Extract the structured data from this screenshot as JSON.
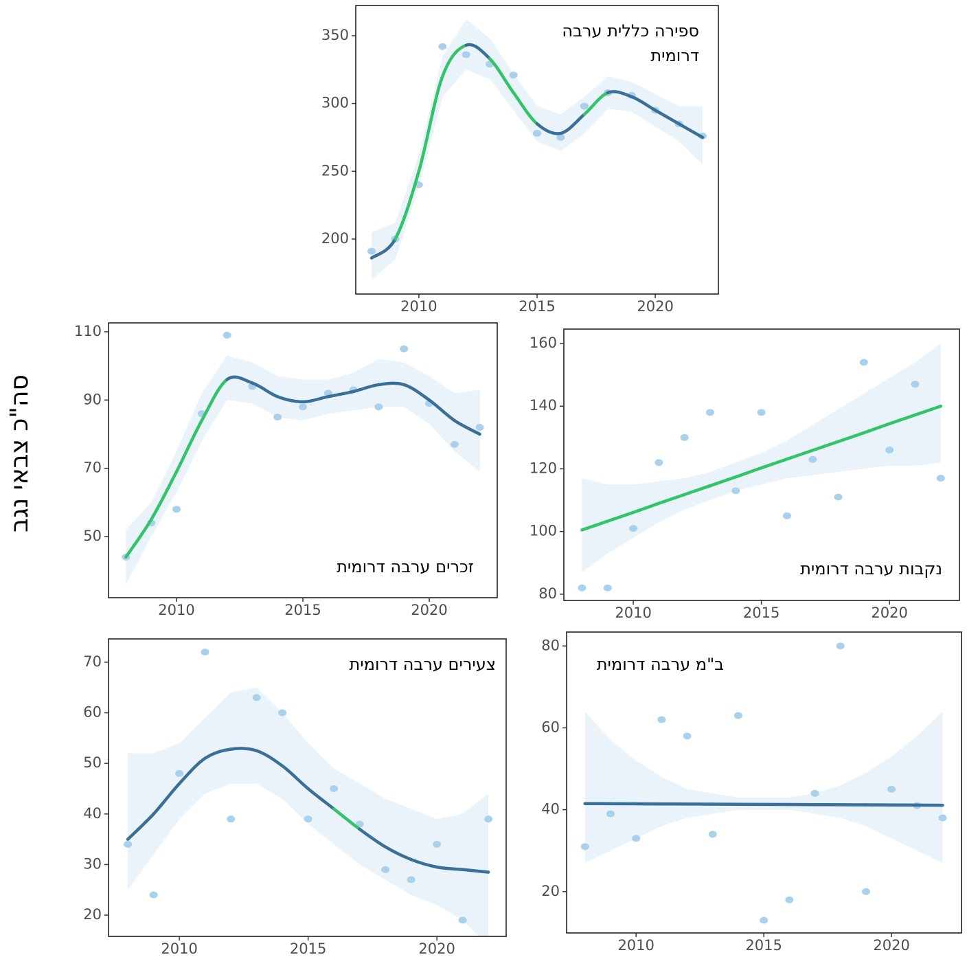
{
  "ylabel": "סה\"כ צבאי נגב",
  "chart_data": [
    {
      "type": "scatter",
      "title_lines": [
        "ספירה כללית ערבה",
        "דרומית"
      ],
      "x": [
        2008,
        2009,
        2010,
        2011,
        2012,
        2013,
        2014,
        2015,
        2016,
        2017,
        2018,
        2019,
        2020,
        2021,
        2022
      ],
      "points": [
        191,
        200,
        240,
        342,
        336,
        329,
        321,
        278,
        275,
        298,
        308,
        306,
        295,
        285,
        276
      ],
      "fit": [
        186,
        200,
        250,
        320,
        343,
        333,
        308,
        285,
        278,
        292,
        308,
        305,
        295,
        285,
        275
      ],
      "band_lower": [
        170,
        185,
        238,
        305,
        325,
        318,
        295,
        272,
        265,
        278,
        296,
        294,
        283,
        272,
        255
      ],
      "band_upper": [
        205,
        212,
        262,
        335,
        362,
        348,
        322,
        298,
        292,
        305,
        320,
        316,
        307,
        298,
        298
      ],
      "segment_colors": [
        "#3a6f98",
        "#33c46a",
        "#33c46a",
        "#33c46a",
        "#3a6f98",
        "#33c46a",
        "#33c46a",
        "#3a6f98",
        "#3a6f98",
        "#33c46a",
        "#3a6f98",
        "#3a6f98",
        "#3a6f98",
        "#3a6f98"
      ],
      "point_color": "#a9d1ec",
      "band_color": "#eaf2fa",
      "xlim": [
        2007.33,
        2022.67
      ],
      "xticks": [
        2010,
        2015,
        2020
      ],
      "ylim": [
        159.4,
        372.3
      ],
      "yticks": [
        200,
        250,
        300,
        350
      ]
    },
    {
      "type": "scatter",
      "title_lines": [
        "זכרים ערבה דרומית"
      ],
      "x": [
        2008,
        2009,
        2010,
        2011,
        2012,
        2013,
        2014,
        2015,
        2016,
        2017,
        2018,
        2019,
        2020,
        2021,
        2022
      ],
      "points": [
        44,
        54,
        58,
        86,
        109,
        94,
        85,
        88,
        92,
        93,
        88,
        105,
        89,
        77,
        82
      ],
      "fit": [
        44,
        55,
        69,
        84,
        96,
        95,
        91,
        89.5,
        91,
        92.5,
        94.5,
        94.5,
        90,
        84,
        80
      ],
      "band_lower": [
        36,
        50,
        63,
        78,
        90,
        89,
        85,
        84,
        86,
        87,
        88,
        88,
        83,
        75,
        69
      ],
      "band_upper": [
        52,
        60,
        75,
        92,
        103,
        101,
        97,
        96,
        96,
        98,
        102,
        101,
        97,
        92,
        93
      ],
      "segment_colors": [
        "#33c46a",
        "#33c46a",
        "#33c46a",
        "#33c46a",
        "#3a6f98",
        "#3a6f98",
        "#3a6f98",
        "#3a6f98",
        "#3a6f98",
        "#3a6f98",
        "#3a6f98",
        "#3a6f98",
        "#3a6f98",
        "#3a6f98"
      ],
      "point_color": "#a9d1ec",
      "band_color": "#eaf2fa",
      "xlim": [
        2007.31,
        2022.69
      ],
      "xticks": [
        2010,
        2015,
        2020
      ],
      "ylim": [
        32.1,
        112.6
      ],
      "yticks": [
        50,
        70,
        90,
        110
      ]
    },
    {
      "type": "scatter",
      "title_lines": [
        "נקבות ערבה דרומית"
      ],
      "x": [
        2008,
        2009,
        2010,
        2011,
        2012,
        2013,
        2014,
        2015,
        2016,
        2017,
        2018,
        2019,
        2020,
        2021,
        2022
      ],
      "points": [
        82,
        82,
        101,
        122,
        130,
        138,
        113,
        138,
        105,
        123,
        111,
        154,
        126,
        147,
        117
      ],
      "fit": [
        100.5,
        103.3,
        106.1,
        109.0,
        111.8,
        114.6,
        117.4,
        120.3,
        123.1,
        125.9,
        128.7,
        131.5,
        134.4,
        137.2,
        140
      ],
      "band_lower": [
        87,
        93,
        98,
        103,
        107,
        110,
        113,
        115,
        117,
        118,
        119,
        120,
        121,
        121,
        122
      ],
      "band_upper": [
        117,
        115,
        115,
        116,
        117,
        119,
        122,
        125,
        129,
        134,
        139,
        144,
        149,
        154,
        160
      ],
      "segment_colors": [
        "#33c46a",
        "#33c46a",
        "#33c46a",
        "#33c46a",
        "#33c46a",
        "#33c46a",
        "#33c46a",
        "#33c46a",
        "#33c46a",
        "#33c46a",
        "#33c46a",
        "#33c46a",
        "#33c46a",
        "#33c46a"
      ],
      "point_color": "#a9d1ec",
      "band_color": "#eaf2fa",
      "xlim": [
        2007.29,
        2022.73
      ],
      "xticks": [
        2010,
        2015,
        2020
      ],
      "ylim": [
        78.0,
        164.6
      ],
      "yticks": [
        80,
        100,
        120,
        140,
        160
      ]
    },
    {
      "type": "scatter",
      "title_lines": [
        "צעירים ערבה דרומית"
      ],
      "x": [
        2008,
        2009,
        2010,
        2011,
        2012,
        2013,
        2014,
        2015,
        2016,
        2017,
        2018,
        2019,
        2020,
        2021,
        2022
      ],
      "points": [
        34,
        24,
        48,
        72,
        39,
        63,
        60,
        39,
        45,
        38,
        29,
        27,
        34,
        19,
        39
      ],
      "fit": [
        35,
        40,
        46,
        51,
        52.8,
        52.5,
        49.5,
        45,
        41,
        37,
        33.5,
        31,
        29.5,
        29,
        28.5
      ],
      "band_lower": [
        25,
        32,
        39,
        44,
        46,
        46,
        43,
        38,
        34,
        30,
        27,
        24,
        22,
        19,
        14
      ],
      "band_upper": [
        52,
        52,
        54,
        59,
        64,
        65,
        60,
        54,
        49,
        46,
        43,
        41,
        39,
        40,
        44
      ],
      "segment_colors": [
        "#3a6f98",
        "#3a6f98",
        "#3a6f98",
        "#3a6f98",
        "#3a6f98",
        "#3a6f98",
        "#3a6f98",
        "#3a6f98",
        "#33c46a",
        "#3a6f98",
        "#3a6f98",
        "#3a6f98",
        "#3a6f98",
        "#3a6f98"
      ],
      "point_color": "#a9d1ec",
      "band_color": "#eaf2fa",
      "xlim": [
        2007.25,
        2022.69
      ],
      "xticks": [
        2010,
        2015,
        2020
      ],
      "ylim": [
        15.8,
        74.6
      ],
      "yticks": [
        20,
        30,
        40,
        50,
        60,
        70
      ]
    },
    {
      "type": "scatter",
      "title_lines": [
        "ב\"מ ערבה דרומית"
      ],
      "x": [
        2008,
        2009,
        2010,
        2011,
        2012,
        2013,
        2014,
        2015,
        2016,
        2017,
        2018,
        2019,
        2020,
        2021,
        2022
      ],
      "points": [
        31,
        39,
        33,
        62,
        58,
        34,
        63,
        13,
        18,
        44,
        80,
        20,
        45,
        41,
        38
      ],
      "fit": [
        41.5,
        41.47,
        41.44,
        41.41,
        41.39,
        41.36,
        41.33,
        41.3,
        41.27,
        41.24,
        41.21,
        41.19,
        41.16,
        41.13,
        41.1
      ],
      "band_lower": [
        27,
        30,
        33,
        36,
        38,
        39,
        40,
        40,
        40,
        39,
        38,
        36,
        33,
        30,
        27
      ],
      "band_upper": [
        64,
        57,
        52,
        48,
        45,
        44,
        43,
        43,
        43,
        44,
        46,
        49,
        53,
        58,
        64
      ],
      "segment_colors": [
        "#3a6f98",
        "#3a6f98",
        "#3a6f98",
        "#3a6f98",
        "#3a6f98",
        "#3a6f98",
        "#3a6f98",
        "#3a6f98",
        "#3a6f98",
        "#3a6f98",
        "#3a6f98",
        "#3a6f98",
        "#3a6f98",
        "#3a6f98"
      ],
      "point_color": "#a9d1ec",
      "band_color": "#eaf2fa",
      "xlim": [
        2007.28,
        2022.74
      ],
      "xticks": [
        2010,
        2015,
        2020
      ],
      "ylim": [
        9.9,
        83.4
      ],
      "yticks": [
        20,
        40,
        60,
        80
      ]
    }
  ]
}
